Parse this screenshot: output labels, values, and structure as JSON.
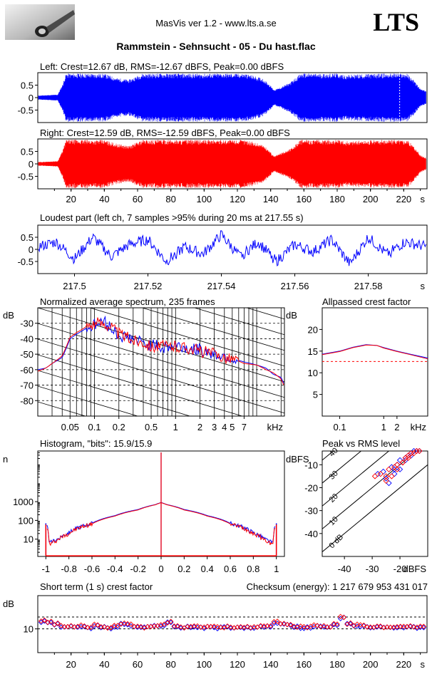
{
  "header": {
    "app_title": "MasVis ver 1.2 - www.lts.a.se",
    "brand": "LTS",
    "file_title": "Rammstein - Sehnsucht - 05 - Du hast.flac"
  },
  "colors": {
    "left": "#0000ff",
    "right": "#ff0000",
    "grid": "#000000"
  },
  "chart_data": [
    {
      "id": "left-waveform",
      "type": "area",
      "title": "Left: Crest=12.67 dB, RMS=-12.67 dBFS, Peak=0.00 dBFS",
      "ylim": [
        -1,
        1
      ],
      "y_ticks": [
        0.5,
        0,
        -0.5
      ],
      "y_tick_labels": [
        "0.5",
        "0",
        "-0.5"
      ],
      "xlim": [
        0,
        234
      ],
      "x_marker": 217.55,
      "envelope": {
        "x": [
          0,
          12,
          15,
          17,
          19,
          22,
          40,
          48,
          55,
          60,
          63,
          68,
          72,
          100,
          110,
          125,
          135,
          139,
          142,
          145,
          150,
          152,
          158,
          160,
          170,
          180,
          185,
          190,
          200,
          210,
          218,
          222,
          226,
          230,
          234
        ],
        "amp": [
          0.08,
          0.12,
          0.55,
          0.97,
          0.97,
          0.97,
          0.96,
          0.78,
          0.72,
          0.88,
          0.97,
          0.96,
          0.97,
          0.96,
          0.97,
          0.96,
          0.78,
          0.55,
          0.32,
          0.38,
          0.55,
          0.62,
          0.96,
          0.97,
          0.96,
          0.97,
          0.9,
          0.93,
          0.95,
          0.97,
          0.97,
          0.96,
          0.7,
          0.35,
          0.25
        ]
      }
    },
    {
      "id": "right-waveform",
      "type": "area",
      "title": "Right: Crest=12.59 dB, RMS=-12.59 dBFS, Peak=0.00 dBFS",
      "ylim": [
        -1,
        1
      ],
      "y_ticks": [
        0.5,
        0,
        -0.5
      ],
      "y_tick_labels": [
        "0.5",
        "0",
        "-0.5"
      ],
      "xlim": [
        0,
        234
      ],
      "x_ticks": [
        20,
        40,
        60,
        80,
        100,
        120,
        140,
        160,
        180,
        200,
        220
      ],
      "x_tick_labels": [
        "20",
        "40",
        "60",
        "80",
        "100",
        "120",
        "140",
        "160",
        "180",
        "200",
        "220"
      ],
      "x_unit": "s",
      "envelope": {
        "x": [
          0,
          12,
          15,
          17,
          19,
          22,
          40,
          48,
          55,
          60,
          63,
          68,
          72,
          100,
          110,
          125,
          135,
          139,
          142,
          145,
          150,
          152,
          158,
          160,
          170,
          180,
          185,
          190,
          200,
          210,
          218,
          222,
          226,
          230,
          234
        ],
        "amp": [
          0.07,
          0.11,
          0.55,
          0.97,
          0.97,
          0.97,
          0.96,
          0.8,
          0.72,
          0.88,
          0.97,
          0.96,
          0.97,
          0.96,
          0.97,
          0.96,
          0.78,
          0.55,
          0.3,
          0.4,
          0.55,
          0.62,
          0.96,
          0.97,
          0.96,
          0.97,
          0.9,
          0.93,
          0.95,
          0.97,
          0.97,
          0.96,
          0.72,
          0.35,
          0.22
        ]
      }
    },
    {
      "id": "loudest-part",
      "type": "line",
      "title": "Loudest part (left  ch, 7 samples >95% during 20 ms at 217.55 s)",
      "xlim": [
        217.49,
        217.596
      ],
      "ylim": [
        -1,
        1
      ],
      "y_ticks": [
        0.5,
        0,
        -0.5
      ],
      "y_tick_labels": [
        "0.5",
        "0",
        "-0.5"
      ],
      "x_ticks": [
        217.5,
        217.52,
        217.54,
        217.56,
        217.58
      ],
      "x_tick_labels": [
        "217.5",
        "217.52",
        "217.54",
        "217.56",
        "217.58"
      ],
      "x_unit": "s",
      "x": [
        217.49,
        217.495,
        217.5,
        217.505,
        217.51,
        217.515,
        217.52,
        217.525,
        217.53,
        217.535,
        217.54,
        217.545,
        217.55,
        217.555,
        217.56,
        217.565,
        217.57,
        217.575,
        217.58,
        217.585,
        217.59,
        217.596
      ],
      "y": [
        0.1,
        0.3,
        -0.4,
        0.5,
        -0.3,
        0.2,
        0.4,
        -0.5,
        0.1,
        -0.2,
        0.6,
        -0.3,
        0.3,
        -0.5,
        0.2,
        -0.1,
        0.4,
        -0.6,
        0.5,
        -0.2,
        0.3,
        0.1
      ]
    },
    {
      "id": "spectrum",
      "type": "line",
      "title": "Normalized average spectrum, 235 frames",
      "ylabel": "dB",
      "ylim": [
        -90,
        -20
      ],
      "y_ticks": [
        -30,
        -40,
        -50,
        -60,
        -70,
        -80
      ],
      "y_tick_labels": [
        "-30",
        "-40",
        "-50",
        "-60",
        "-70",
        "-80"
      ],
      "xscale": "log",
      "xlim": [
        0.02,
        22
      ],
      "x_ticks": [
        0.05,
        0.1,
        0.2,
        0.5,
        1,
        2,
        3,
        4,
        5,
        7
      ],
      "x_tick_labels": [
        "0.05",
        "0.1",
        "0.2",
        "0.5",
        "1",
        "2",
        "3",
        "4",
        "5",
        "7"
      ],
      "x_unit": "kHz",
      "x": [
        0.02,
        0.025,
        0.03,
        0.04,
        0.05,
        0.06,
        0.08,
        0.1,
        0.13,
        0.16,
        0.2,
        0.3,
        0.4,
        0.5,
        0.7,
        1,
        1.5,
        2,
        3,
        4,
        5,
        7,
        10,
        13,
        16,
        20,
        22
      ],
      "series": [
        {
          "name": "left",
          "values": [
            -60,
            -59,
            -56,
            -52,
            -40,
            -37,
            -33,
            -31,
            -29,
            -33,
            -38,
            -40,
            -43,
            -44,
            -46,
            -44,
            -47,
            -47,
            -50,
            -51,
            -53,
            -55,
            -57,
            -59,
            -63,
            -65,
            -70
          ]
        },
        {
          "name": "right",
          "values": [
            -61,
            -59,
            -56,
            -51,
            -39,
            -36,
            -32,
            -30,
            -30,
            -32,
            -37,
            -41,
            -42,
            -45,
            -45,
            -45,
            -46,
            -48,
            -50,
            -52,
            -53,
            -56,
            -57,
            -60,
            -62,
            -66,
            -71
          ]
        }
      ]
    },
    {
      "id": "allpassed-crest",
      "type": "line",
      "title": "Allpassed crest factor",
      "ylabel": "dB",
      "ylim": [
        0,
        25
      ],
      "y_ticks": [
        20,
        15,
        10,
        5
      ],
      "y_tick_labels": [
        "20",
        "15",
        "10",
        "5"
      ],
      "xscale": "log",
      "xlim": [
        0.04,
        10
      ],
      "x_ticks": [
        0.1,
        1,
        2
      ],
      "x_tick_labels": [
        "0.1",
        "1",
        "2"
      ],
      "x_unit": "kHz",
      "reference_line": 12.6,
      "x": [
        0.04,
        0.1,
        0.2,
        0.4,
        0.7,
        1,
        2,
        4,
        10
      ],
      "series": [
        {
          "name": "left",
          "values": [
            14.3,
            15.0,
            15.9,
            16.5,
            16.3,
            15.8,
            15.0,
            14.3,
            13.4
          ]
        },
        {
          "name": "right",
          "values": [
            14.2,
            14.9,
            15.8,
            16.4,
            16.3,
            15.7,
            14.9,
            14.2,
            13.2
          ]
        }
      ]
    },
    {
      "id": "histogram",
      "type": "line",
      "title": "Histogram, \"bits\": 15.9/15.9",
      "ylabel": "n",
      "yscale": "log",
      "ylim": [
        1.2,
        500000
      ],
      "y_ticks": [
        1000,
        100,
        10
      ],
      "y_tick_labels": [
        "1000",
        "100",
        "10"
      ],
      "xlim": [
        -1.07,
        1.07
      ],
      "x_ticks": [
        -1,
        -0.8,
        -0.6,
        -0.4,
        -0.2,
        0,
        0.2,
        0.4,
        0.6,
        0.8,
        1
      ],
      "x_tick_labels": [
        "-1",
        "-0.8",
        "-0.6",
        "-0.4",
        "-0.2",
        "0",
        "0.2",
        "0.4",
        "0.6",
        "0.8",
        "1"
      ],
      "x": [
        -1,
        -0.97,
        -0.9,
        -0.8,
        -0.6,
        -0.4,
        -0.2,
        -0.05,
        0,
        0.05,
        0.2,
        0.4,
        0.6,
        0.8,
        0.9,
        0.97,
        1
      ],
      "series": [
        {
          "name": "left",
          "values": [
            70,
            6,
            10,
            22,
            70,
            180,
            380,
            700,
            900,
            700,
            380,
            180,
            70,
            22,
            10,
            6,
            70
          ]
        },
        {
          "name": "right",
          "values": [
            60,
            5,
            9,
            20,
            65,
            170,
            360,
            680,
            880,
            680,
            360,
            170,
            65,
            20,
            9,
            5,
            60
          ]
        }
      ]
    },
    {
      "id": "peak-vs-rms",
      "type": "scatter",
      "title": "Peak vs RMS level",
      "ylabel": "dBFS",
      "xlabel": "dBFS",
      "xlim": [
        -48,
        -10
      ],
      "ylim": [
        -50,
        -4
      ],
      "x_ticks": [
        -40,
        -30,
        -20
      ],
      "x_tick_labels": [
        "-40",
        "-30",
        "-20"
      ],
      "y_ticks": [
        -10,
        -20,
        -30,
        -40
      ],
      "y_tick_labels": [
        "-10",
        "-20",
        "-30",
        "-40"
      ],
      "crest_lines": [
        0,
        10,
        20,
        30,
        40
      ],
      "crest_labels": [
        "0 dB",
        "10",
        "20",
        "30",
        "40"
      ],
      "series": [
        {
          "name": "left",
          "x": [
            -28,
            -26,
            -25,
            -23,
            -22,
            -21,
            -20,
            -19,
            -18,
            -17,
            -16,
            -15,
            -14,
            -13,
            -24,
            -22,
            -20,
            -18,
            -16
          ],
          "y": [
            -14,
            -13,
            -16,
            -11,
            -12,
            -10,
            -8,
            -9,
            -7,
            -6,
            -5,
            -4,
            -4,
            -4,
            -18,
            -14,
            -12,
            -8,
            -6
          ]
        },
        {
          "name": "right",
          "x": [
            -29,
            -27,
            -25,
            -24,
            -22,
            -21,
            -19,
            -18,
            -17,
            -16,
            -15,
            -14,
            -13,
            -25,
            -23,
            -21,
            -19,
            -17
          ],
          "y": [
            -15,
            -14,
            -15,
            -12,
            -11,
            -10,
            -9,
            -7,
            -6,
            -5,
            -5,
            -4,
            -4,
            -17,
            -15,
            -12,
            -9,
            -7
          ]
        }
      ]
    },
    {
      "id": "short-term-crest",
      "type": "scatter",
      "title": "Short term (1 s) crest factor",
      "checksum": "Checksum (energy):  1 217 679 953 431 017",
      "ylabel": "dB",
      "ylim": [
        0,
        24
      ],
      "y_ticks": [
        10
      ],
      "y_tick_labels": [
        "10"
      ],
      "ref_lines": [
        10,
        15
      ],
      "xlim": [
        0,
        234
      ],
      "x_ticks": [
        20,
        40,
        60,
        80,
        100,
        120,
        140,
        160,
        180,
        200,
        220
      ],
      "x_tick_labels": [
        "20",
        "40",
        "60",
        "80",
        "100",
        "120",
        "140",
        "160",
        "180",
        "200",
        "220"
      ],
      "x_unit": "s",
      "x": [
        2,
        6,
        10,
        14,
        18,
        22,
        26,
        30,
        34,
        38,
        42,
        46,
        50,
        54,
        58,
        62,
        66,
        70,
        74,
        78,
        82,
        86,
        90,
        94,
        98,
        102,
        106,
        110,
        114,
        118,
        122,
        126,
        130,
        134,
        138,
        142,
        146,
        150,
        154,
        158,
        162,
        166,
        170,
        174,
        178,
        182,
        186,
        190,
        194,
        198,
        202,
        206,
        210,
        214,
        218,
        222,
        226,
        230
      ],
      "series": [
        {
          "name": "left",
          "values": [
            13,
            12.5,
            12,
            11,
            10.8,
            10.5,
            11,
            10.5,
            11.5,
            10.8,
            10.2,
            11,
            12,
            11.5,
            11,
            10.5,
            10.8,
            11,
            11.5,
            12.5,
            11,
            10.5,
            10.8,
            10.6,
            10.5,
            10.8,
            10.4,
            10.5,
            10.6,
            10.5,
            10.4,
            10.5,
            10.6,
            10.8,
            11,
            12.5,
            12,
            11.5,
            10.8,
            10.5,
            10.6,
            11,
            10.8,
            10.6,
            11.5,
            14.5,
            12,
            11.5,
            11,
            10.8,
            10.5,
            10.6,
            10.8,
            10.5,
            10.6,
            10.8,
            10.6,
            10.5
          ]
        },
        {
          "name": "right",
          "values": [
            13.5,
            12.8,
            12.2,
            11.2,
            11,
            10.8,
            11.2,
            10.8,
            11.8,
            11,
            10.5,
            11.2,
            12.3,
            11.8,
            11.2,
            10.8,
            11,
            11.3,
            11.8,
            12.8,
            11.2,
            10.8,
            11,
            10.9,
            10.8,
            11,
            10.7,
            10.8,
            10.9,
            10.8,
            10.7,
            10.8,
            10.9,
            11,
            11.3,
            13,
            12.4,
            11.8,
            11,
            10.8,
            10.9,
            11.3,
            11,
            10.9,
            11.8,
            14.8,
            12.3,
            11.8,
            11.3,
            11,
            10.8,
            10.9,
            11,
            10.8,
            10.9,
            11,
            10.9,
            10.7
          ]
        }
      ]
    }
  ]
}
